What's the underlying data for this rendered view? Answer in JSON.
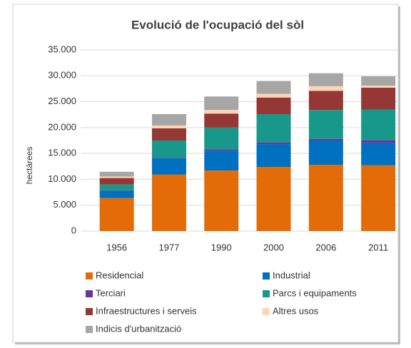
{
  "chart_data": {
    "type": "stacked_bar",
    "title": "Evolució de l'ocupació del sòl",
    "y_label": "hectàrees",
    "categories": [
      "1956",
      "1977",
      "1990",
      "2000",
      "2006",
      "2011"
    ],
    "series": [
      {
        "name": "Residencial",
        "color": "#e36c09",
        "values": [
          6400,
          10900,
          11700,
          12400,
          12800,
          12700
        ]
      },
      {
        "name": "Industrial",
        "color": "#0070c0",
        "values": [
          1400,
          3150,
          3850,
          4400,
          4700,
          4300
        ]
      },
      {
        "name": "Terciari",
        "color": "#7030a0",
        "values": [
          100,
          100,
          250,
          300,
          300,
          500
        ]
      },
      {
        "name": "Parcs i equipaments",
        "color": "#17988a",
        "values": [
          1100,
          3350,
          4200,
          5500,
          5600,
          6000
        ]
      },
      {
        "name": "Infraestructures i serveis",
        "color": "#953735",
        "values": [
          1250,
          2350,
          2700,
          3200,
          3700,
          4200
        ]
      },
      {
        "name": "Altres usos",
        "color": "#fcd5b5",
        "values": [
          300,
          550,
          700,
          700,
          900,
          400
        ]
      },
      {
        "name": "Indicis d'urbanització",
        "color": "#a6a6a6",
        "values": [
          900,
          2200,
          2600,
          2500,
          2500,
          1800
        ]
      }
    ],
    "ylim": [
      0,
      35000
    ],
    "yticks": [
      0,
      {
        "value": 5000,
        "label": "5.000"
      },
      {
        "value": 10000,
        "label": "10.000"
      },
      {
        "value": 15000,
        "label": "15.000"
      },
      {
        "value": 20000,
        "label": "20.000"
      },
      {
        "value": 25000,
        "label": "25.000"
      },
      {
        "value": 30000,
        "label": "30.000"
      },
      {
        "value": 35000,
        "label": "35.000"
      }
    ],
    "grid": true
  }
}
